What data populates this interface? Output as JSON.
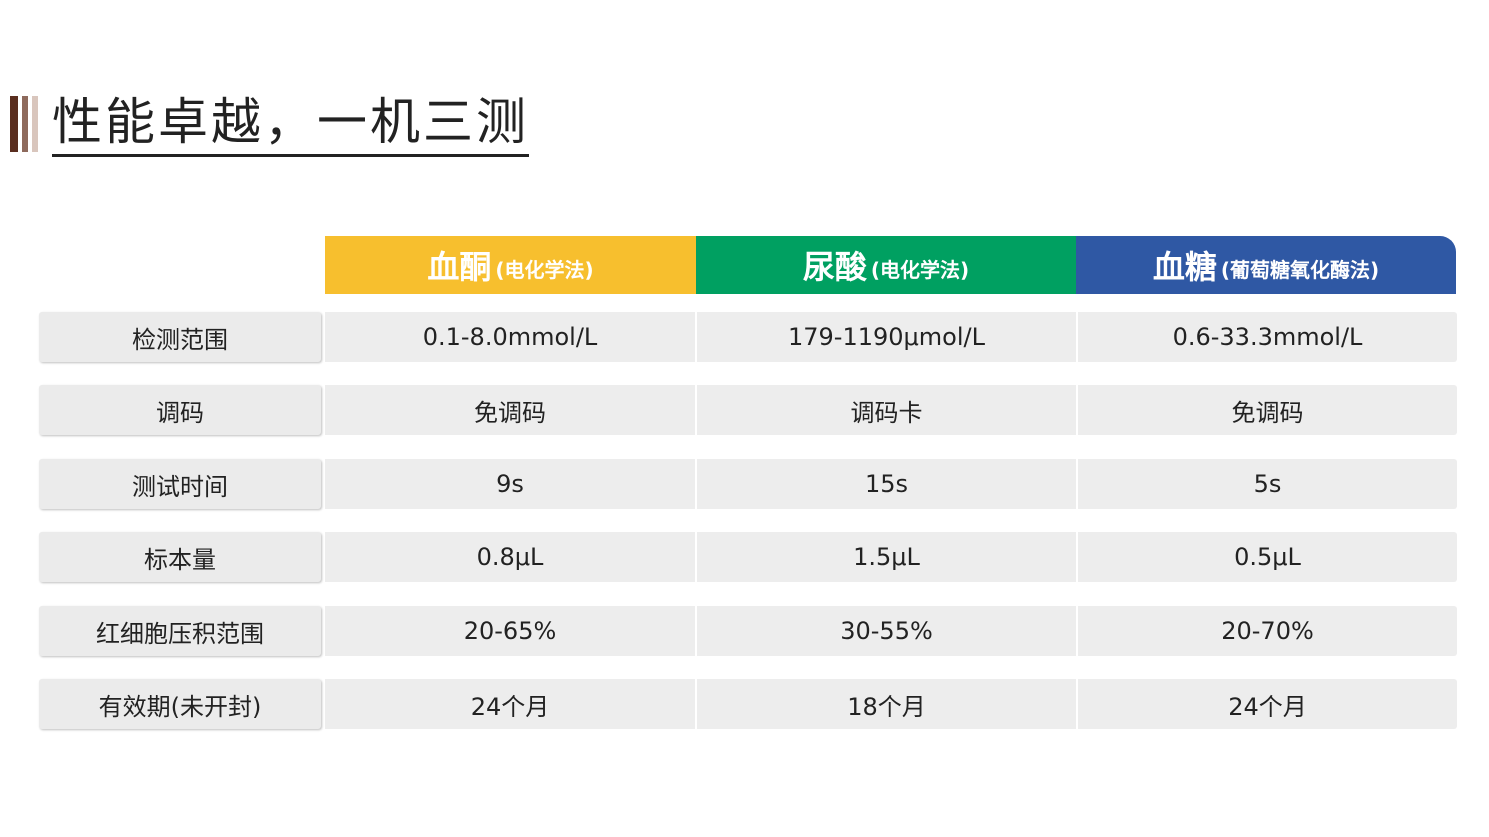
{
  "title": "性能卓越，一机三测",
  "columns": [
    {
      "name": "血酮",
      "method": "(电化学法)",
      "color": "#f7bf2e"
    },
    {
      "name": "尿酸",
      "method": "(电化学法)",
      "color": "#00a061"
    },
    {
      "name": "血糖",
      "method": "(葡萄糖氧化酶法)",
      "color": "#2f58a4"
    }
  ],
  "rows": [
    {
      "label": "检测范围",
      "values": [
        "0.1-8.0mmol/L",
        "179-1190μmol/L",
        "0.6-33.3mmol/L"
      ]
    },
    {
      "label": "调码",
      "values": [
        "免调码",
        "调码卡",
        "免调码"
      ]
    },
    {
      "label": "测试时间",
      "values": [
        "9s",
        "15s",
        "5s"
      ]
    },
    {
      "label": "标本量",
      "values": [
        "0.8μL",
        "1.5μL",
        "0.5μL"
      ]
    },
    {
      "label": "红细胞压积范围",
      "values": [
        "20-65%",
        "30-55%",
        "20-70%"
      ]
    },
    {
      "label": "有效期(未开封)",
      "values": [
        "24个月",
        "18个月",
        "24个月"
      ]
    }
  ]
}
